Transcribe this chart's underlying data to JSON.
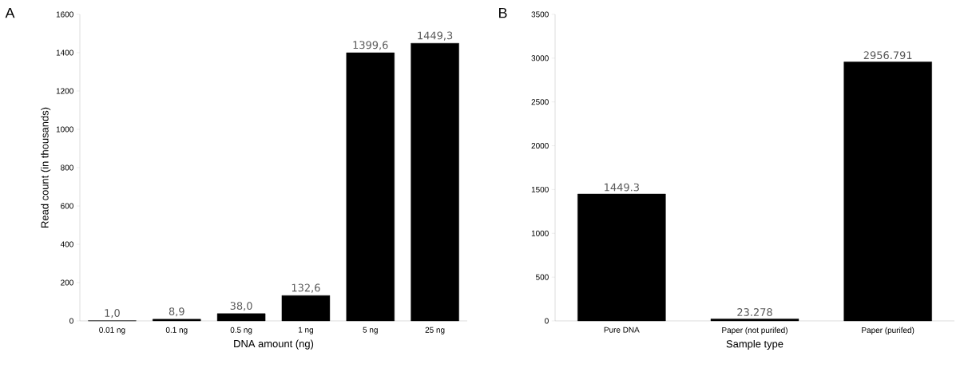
{
  "chart_data": [
    {
      "type": "bar",
      "annotations": [
        "A"
      ],
      "xlabel": "DNA amount (ng)",
      "ylabel": "Read count (in thousands)",
      "categories": [
        "0.01 ng",
        "0.1 ng",
        "0.5 ng",
        "1 ng",
        "5 ng",
        "25 ng"
      ],
      "values": [
        1.0,
        8.9,
        38.0,
        132.6,
        1399.6,
        1449.3
      ],
      "value_labels": [
        "1,0",
        "8,9",
        "38,0",
        "132,6",
        "1399,6",
        "1449,3"
      ],
      "color": "#000000",
      "ylim": [
        0,
        1600
      ],
      "yticks": [
        0,
        200,
        400,
        600,
        800,
        1000,
        1200,
        1400,
        1600
      ]
    },
    {
      "type": "bar",
      "annotations": [
        "B"
      ],
      "xlabel": "Sample type",
      "categories": [
        "Pure DNA",
        "Paper (not purifed)",
        "Paper (purifed)"
      ],
      "values": [
        1449.3,
        23.278,
        2956.791
      ],
      "data_labels": true,
      "color": "#000000",
      "ylim": [
        0,
        3500
      ],
      "yticks": [
        0,
        500,
        1000,
        1500,
        2000,
        2500,
        3000,
        3500
      ]
    }
  ]
}
